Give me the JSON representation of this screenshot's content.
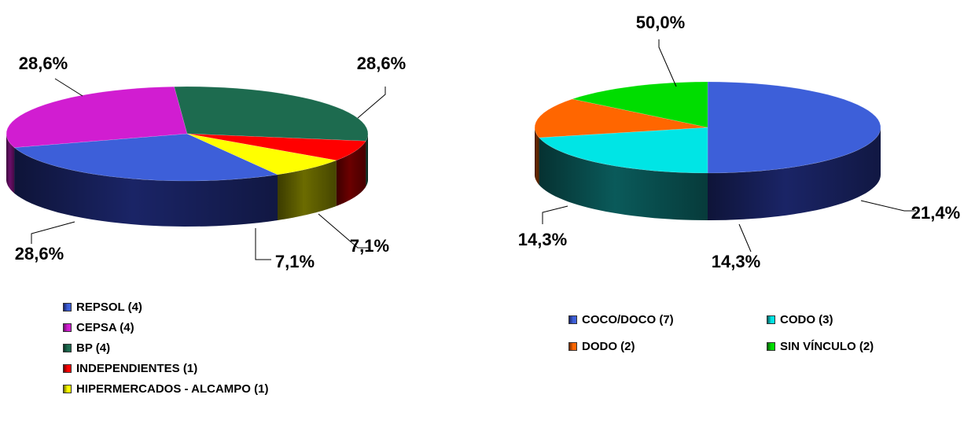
{
  "chart_data": [
    {
      "type": "pie",
      "style": "3d",
      "slices": [
        {
          "label": "REPSOL (4)",
          "value": 28.6,
          "display": "28,6%",
          "color": "#3d5fd9",
          "side": "#1a2466"
        },
        {
          "label": "CEPSA (4)",
          "value": 28.6,
          "display": "28,6%",
          "color": "#d11dd1",
          "side": "#6b0f6b"
        },
        {
          "label": "BP (4)",
          "value": 28.6,
          "display": "28,6%",
          "color": "#1d6b4f",
          "side": "#0b3326"
        },
        {
          "label": "INDEPENDIENTES (1)",
          "value": 7.1,
          "display": "7,1%",
          "color": "#ff0000",
          "side": "#6b0000"
        },
        {
          "label": "HIPERMERCADOS - ALCAMPO (1)",
          "value": 7.1,
          "display": "7,1%",
          "color": "#ffff00",
          "side": "#6b6b00"
        }
      ],
      "legend_position": "bottom"
    },
    {
      "type": "pie",
      "style": "3d",
      "slices": [
        {
          "label": "COCO/DOCO (7)",
          "value": 50.0,
          "display": "50,0%",
          "color": "#3d5fd9",
          "side": "#1a2466"
        },
        {
          "label": "CODO (3)",
          "value": 21.4,
          "display": "21,4%",
          "color": "#00e5e5",
          "side": "#0a5a5a"
        },
        {
          "label": "DODO (2)",
          "value": 14.3,
          "display": "14,3%",
          "color": "#ff6600",
          "side": "#6b2a00"
        },
        {
          "label": "SIN VÍNCULO (2)",
          "value": 14.3,
          "display": "14,3%",
          "color": "#00dd00",
          "side": "#0a5a0a"
        }
      ],
      "legend_position": "bottom"
    }
  ]
}
